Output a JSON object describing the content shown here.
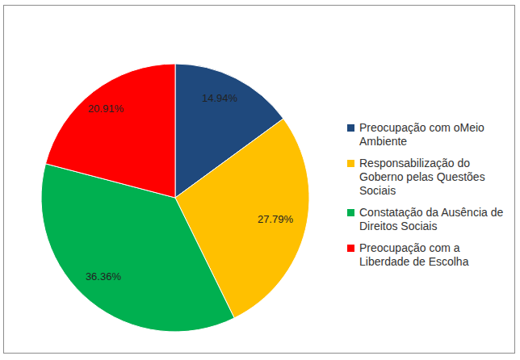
{
  "chart_data": {
    "type": "pie",
    "categories": [
      "Preocupação com oMeio Ambiente",
      "Responsabilização do Goberno pelas Questões Sociais",
      "Constatação da Ausência de Direitos Sociais",
      "Preocupação com a Liberdade de Escolha"
    ],
    "values": [
      14.94,
      27.79,
      36.36,
      20.91
    ],
    "value_labels": [
      "14.94%",
      "27.79%",
      "36.36%",
      "20.91%"
    ],
    "colors": [
      "#1f497d",
      "#ffc000",
      "#00b050",
      "#ff0000"
    ],
    "data_labels": true,
    "legend": "right"
  }
}
